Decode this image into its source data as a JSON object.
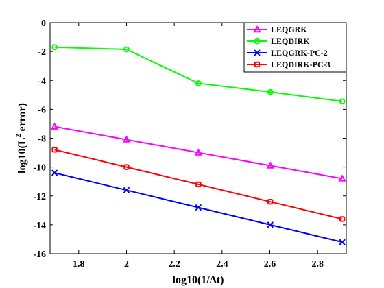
{
  "chart_data": {
    "type": "line",
    "title": "",
    "xlabel": "log10(1/Δt)",
    "ylabel_main": "log10(L",
    "ylabel_sup": "2",
    "ylabel_tail": " error)",
    "xlim": [
      1.68,
      2.92
    ],
    "ylim": [
      -16,
      0
    ],
    "xticks": [
      1.8,
      2,
      2.2,
      2.4,
      2.6,
      2.8
    ],
    "xtick_labels": [
      "1.8",
      "2",
      "2.2",
      "2.4",
      "2.6",
      "2.8"
    ],
    "yticks": [
      0,
      -2,
      -4,
      -6,
      -8,
      -10,
      -12,
      -14,
      -16
    ],
    "ytick_labels": [
      "0",
      "-2",
      "-4",
      "-6",
      "-8",
      "-10",
      "-12",
      "-14",
      "-16"
    ],
    "grid": false,
    "legend_position": "top-right",
    "x": [
      1.699,
      2.0,
      2.301,
      2.602,
      2.903
    ],
    "series": [
      {
        "name": "LEQGRK",
        "color": "#ff00ff",
        "marker": "triangle",
        "values": [
          -7.2,
          -8.1,
          -9.0,
          -9.9,
          -10.8
        ]
      },
      {
        "name": "LEQDIRK",
        "color": "#00ff00",
        "marker": "circle",
        "values": [
          -1.7,
          -1.85,
          -4.2,
          -4.8,
          -5.45
        ]
      },
      {
        "name": "LEQGRK-PC-2",
        "color": "#0000ff",
        "marker": "x",
        "values": [
          -10.4,
          -11.6,
          -12.8,
          -14.0,
          -15.2
        ]
      },
      {
        "name": "LEQDIRK-PC-3",
        "color": "#ff0000",
        "marker": "square",
        "values": [
          -8.8,
          -10.0,
          -11.2,
          -12.4,
          -13.6
        ]
      }
    ]
  }
}
